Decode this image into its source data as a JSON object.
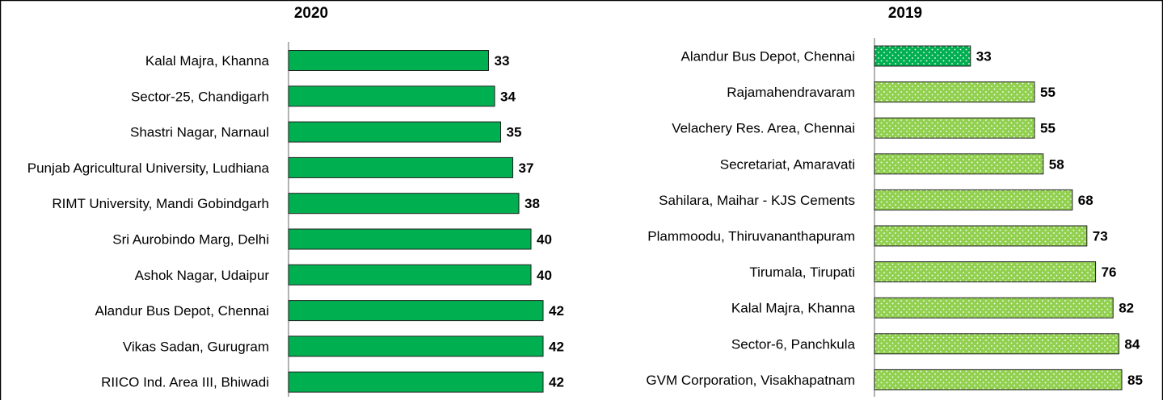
{
  "chart_data": [
    {
      "type": "bar",
      "orientation": "horizontal",
      "title": "2020",
      "categories": [
        "Kalal Majra, Khanna",
        "Sector-25, Chandigarh",
        "Shastri Nagar, Narnaul",
        "Punjab Agricultural University, Ludhiana",
        "RIMT University, Mandi Gobindgarh",
        "Sri Aurobindo Marg, Delhi",
        "Ashok Nagar, Udaipur",
        "Alandur Bus Depot, Chennai",
        "Vikas Sadan, Gurugram",
        "RIICO Ind. Area III, Bhiwadi"
      ],
      "values": [
        33,
        34,
        35,
        37,
        38,
        40,
        40,
        42,
        42,
        42
      ],
      "data_labels": [
        "33",
        "34",
        "35",
        "37",
        "38",
        "40",
        "40",
        "42",
        "42",
        "42"
      ],
      "xlim": [
        0,
        85
      ],
      "grid": false,
      "legend": "none",
      "colors": {
        "bar": "#00b050",
        "outline": "#1f1f1f"
      }
    },
    {
      "type": "bar",
      "orientation": "horizontal",
      "title": "2019",
      "categories": [
        "Alandur Bus Depot, Chennai",
        "Rajamahendravaram",
        "Velachery Res. Area, Chennai",
        "Secretariat, Amaravati",
        "Sahilara, Maihar - KJS Cements",
        "Plammoodu, Thiruvananthapuram",
        "Tirumala, Tirupati",
        "Kalal Majra, Khanna",
        "Sector-6, Panchkula",
        "GVM Corporation, Visakhapatnam"
      ],
      "values": [
        33,
        55,
        55,
        58,
        68,
        73,
        76,
        82,
        84,
        85
      ],
      "data_labels": [
        "33",
        "55",
        "55",
        "58",
        "68",
        "73",
        "76",
        "82",
        "84",
        "85"
      ],
      "xlim": [
        0,
        85
      ],
      "grid": false,
      "legend": "none",
      "colors": {
        "highlight_bar": "#00b050",
        "bar": "#92d050",
        "dots": "#ffffff",
        "outline": "#1f1f1f"
      },
      "pattern": "dotted",
      "highlighted_category": "Alandur Bus Depot, Chennai"
    }
  ]
}
